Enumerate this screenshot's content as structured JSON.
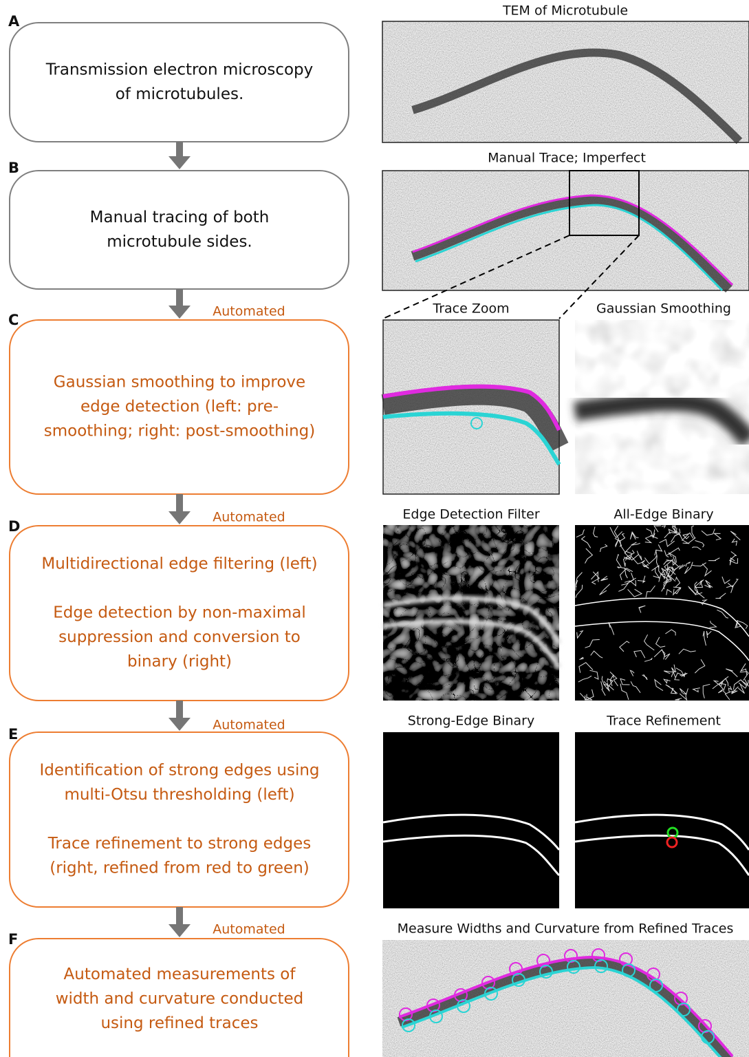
{
  "steps": [
    {
      "letter": "A",
      "paragraphs": [
        [
          "Transmission electron microscopy",
          "of microtubules."
        ]
      ]
    },
    {
      "letter": "B",
      "paragraphs": [
        [
          "Manual tracing of both",
          "microtubule sides."
        ]
      ]
    },
    {
      "letter": "C",
      "note": "Automated",
      "paragraphs": [
        [
          "Gaussian smoothing to improve",
          "edge detection (left: pre-",
          "smoothing; right: post-smoothing)"
        ]
      ]
    },
    {
      "letter": "D",
      "note": "Automated",
      "paragraphs": [
        [
          "Multidirectional edge filtering (left)"
        ],
        [
          "Edge detection by non-maximal",
          "suppression and conversion to",
          "binary (right)"
        ]
      ]
    },
    {
      "letter": "E",
      "note": "Automated",
      "paragraphs": [
        [
          "Identification of strong edges using",
          "multi-Otsu thresholding (left)"
        ],
        [
          "Trace refinement to strong edges",
          "(right, refined from red to green)"
        ]
      ]
    },
    {
      "letter": "F",
      "note": "Automated",
      "paragraphs": [
        [
          "Automated measurements of",
          "width and curvature conducted",
          "using refined traces"
        ]
      ]
    }
  ],
  "image_titles": [
    "TEM of Microtubule",
    "Manual Trace; Imperfect",
    "Trace Zoom",
    "Gaussian Smoothing",
    "Edge Detection Filter",
    "All-Edge Binary",
    "Strong-Edge Binary",
    "Trace Refinement",
    "Measure Widths and Curvature from Refined Traces"
  ]
}
